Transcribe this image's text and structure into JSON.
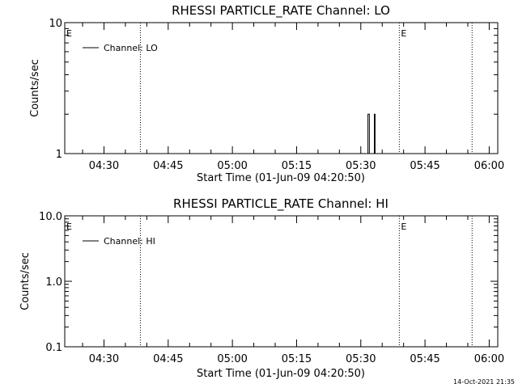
{
  "chart_data": [
    {
      "type": "line",
      "title": "RHESSI PARTICLE_RATE Channel: LO",
      "xlabel": "Start Time (01-Jun-09 04:20:50)",
      "ylabel": "Counts/sec",
      "yscale": "log",
      "ylim": [
        1,
        10
      ],
      "y_ticks": [
        {
          "value": 1,
          "label": "1"
        },
        {
          "value": 10,
          "label": "10"
        }
      ],
      "xlim": [
        "04:20:50",
        "06:02:00"
      ],
      "x_ticks": [
        "04:30",
        "04:45",
        "05:00",
        "05:15",
        "05:30",
        "05:45",
        "06:00"
      ],
      "legend": {
        "entries": [
          "Channel: LO"
        ],
        "position": "top-left"
      },
      "eclipse_markers": [
        {
          "time": "04:20:50",
          "label": "E",
          "dotted": false
        },
        {
          "time": "04:38:30",
          "label": "",
          "dotted": true
        },
        {
          "time": "05:39:00",
          "label": "E",
          "dotted": true
        },
        {
          "time": "05:56:00",
          "label": "",
          "dotted": true
        }
      ],
      "series": [
        {
          "name": "Channel: LO",
          "x": [
            "05:31:00",
            "05:31:20",
            "05:31:40",
            "05:32:00",
            "05:32:30",
            "05:33:00",
            "05:33:10",
            "05:33:20",
            "05:33:40"
          ],
          "values": [
            1,
            1,
            2,
            1,
            1,
            1,
            2,
            1,
            1
          ]
        }
      ]
    },
    {
      "type": "line",
      "title": "RHESSI PARTICLE_RATE Channel: HI",
      "xlabel": "Start Time (01-Jun-09 04:20:50)",
      "ylabel": "Counts/sec",
      "yscale": "log",
      "ylim": [
        0.1,
        10
      ],
      "y_ticks": [
        {
          "value": 0.1,
          "label": "0.1"
        },
        {
          "value": 1,
          "label": "1.0"
        },
        {
          "value": 10,
          "label": "10.0"
        }
      ],
      "xlim": [
        "04:20:50",
        "06:02:00"
      ],
      "x_ticks": [
        "04:30",
        "04:45",
        "05:00",
        "05:15",
        "05:30",
        "05:45",
        "06:00"
      ],
      "legend": {
        "entries": [
          "Channel: HI"
        ],
        "position": "top-left"
      },
      "eclipse_markers": [
        {
          "time": "04:20:50",
          "label": "E",
          "dotted": false
        },
        {
          "time": "04:38:30",
          "label": "",
          "dotted": true
        },
        {
          "time": "05:39:00",
          "label": "E",
          "dotted": true
        },
        {
          "time": "05:56:00",
          "label": "",
          "dotted": true
        }
      ],
      "series": [
        {
          "name": "Channel: HI",
          "x": [],
          "values": []
        }
      ]
    }
  ],
  "footer_timestamp": "14-Oct-2021 21:35"
}
